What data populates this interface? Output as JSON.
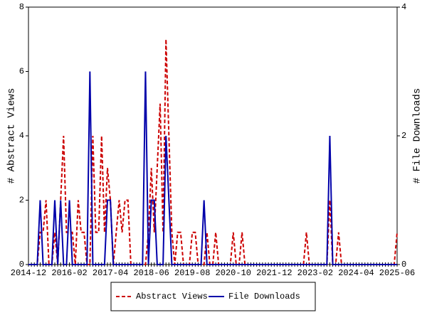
{
  "chart_data": {
    "type": "line",
    "categories": [
      "2014-12",
      null,
      null,
      null,
      null,
      null,
      null,
      null,
      null,
      null,
      null,
      null,
      null,
      null,
      "2016-02",
      null,
      null,
      null,
      null,
      null,
      null,
      null,
      null,
      null,
      null,
      null,
      null,
      null,
      "2017-04",
      null,
      null,
      null,
      null,
      null,
      null,
      null,
      null,
      null,
      null,
      null,
      null,
      null,
      "2018-06",
      null,
      null,
      null,
      null,
      null,
      null,
      null,
      null,
      null,
      null,
      null,
      null,
      null,
      "2019-08",
      null,
      null,
      null,
      null,
      null,
      null,
      null,
      null,
      null,
      null,
      null,
      null,
      null,
      "2020-10",
      null,
      null,
      null,
      null,
      null,
      null,
      null,
      null,
      null,
      null,
      null,
      null,
      null,
      "2021-12",
      null,
      null,
      null,
      null,
      null,
      null,
      null,
      null,
      null,
      null,
      null,
      null,
      null,
      "2023-02",
      null,
      null,
      null,
      null,
      null,
      null,
      null,
      null,
      null,
      null,
      null,
      null,
      null,
      "2024-04",
      null,
      null,
      null,
      null,
      null,
      null,
      null,
      null,
      null,
      null,
      null,
      null,
      null,
      "2025-06"
    ],
    "ylabel": "# Abstract Views",
    "y2label": "# File Downloads",
    "ylim": [
      0,
      8
    ],
    "yticks": [
      0,
      2,
      4,
      6,
      8
    ],
    "y2lim": [
      0,
      4
    ],
    "y2ticks": [
      0,
      2,
      4
    ],
    "legend": "bottom",
    "series": [
      {
        "name": "Abstract Views",
        "color": "#cc0000",
        "dash": true,
        "values": [
          0,
          0,
          0,
          0,
          1,
          1,
          2,
          0,
          0,
          1,
          0,
          2,
          4,
          1,
          1,
          1,
          0,
          2,
          1,
          1,
          0,
          0,
          4,
          1,
          1,
          4,
          1,
          3,
          2,
          0,
          1,
          2,
          1,
          2,
          2,
          0,
          0,
          0,
          0,
          0,
          0,
          1,
          3,
          1,
          3,
          5,
          1,
          7,
          4,
          1,
          0,
          1,
          1,
          0,
          0,
          0,
          1,
          1,
          0,
          0,
          0,
          1,
          0,
          0,
          1,
          0,
          0,
          0,
          0,
          0,
          1,
          0,
          0,
          1,
          0,
          0,
          0,
          0,
          0,
          0,
          0,
          0,
          0,
          0,
          0,
          0,
          0,
          0,
          0,
          0,
          0,
          0,
          0,
          0,
          0,
          1,
          0,
          0,
          0,
          0,
          0,
          0,
          0,
          2,
          0,
          0,
          1,
          0,
          0,
          0,
          0,
          0,
          0,
          0,
          0,
          0,
          0,
          0,
          0,
          0,
          0,
          0,
          0,
          0,
          0,
          0,
          1
        ]
      },
      {
        "name": "File Downloads",
        "color": "#0000aa",
        "axis": "y2",
        "values": [
          0,
          0,
          0,
          0,
          1,
          0,
          0,
          0,
          0,
          1,
          0,
          1,
          0,
          0,
          1,
          0,
          0,
          0,
          0,
          0,
          0,
          3,
          0,
          0,
          0,
          0,
          0,
          1,
          1,
          0,
          0,
          0,
          0,
          0,
          0,
          0,
          0,
          0,
          0,
          0,
          3,
          0,
          1,
          1,
          0,
          0,
          0,
          2,
          1,
          0,
          0,
          0,
          0,
          0,
          0,
          0,
          0,
          0,
          0,
          0,
          1,
          0,
          0,
          0,
          0,
          0,
          0,
          0,
          0,
          0,
          0,
          0,
          0,
          0,
          0,
          0,
          0,
          0,
          0,
          0,
          0,
          0,
          0,
          0,
          0,
          0,
          0,
          0,
          0,
          0,
          0,
          0,
          0,
          0,
          0,
          0,
          0,
          0,
          0,
          0,
          0,
          0,
          0,
          2,
          0,
          0,
          0,
          0,
          0,
          0,
          0,
          0,
          0,
          0,
          0,
          0,
          0,
          0,
          0,
          0,
          0,
          0,
          0,
          0,
          0,
          0,
          0
        ]
      }
    ]
  }
}
